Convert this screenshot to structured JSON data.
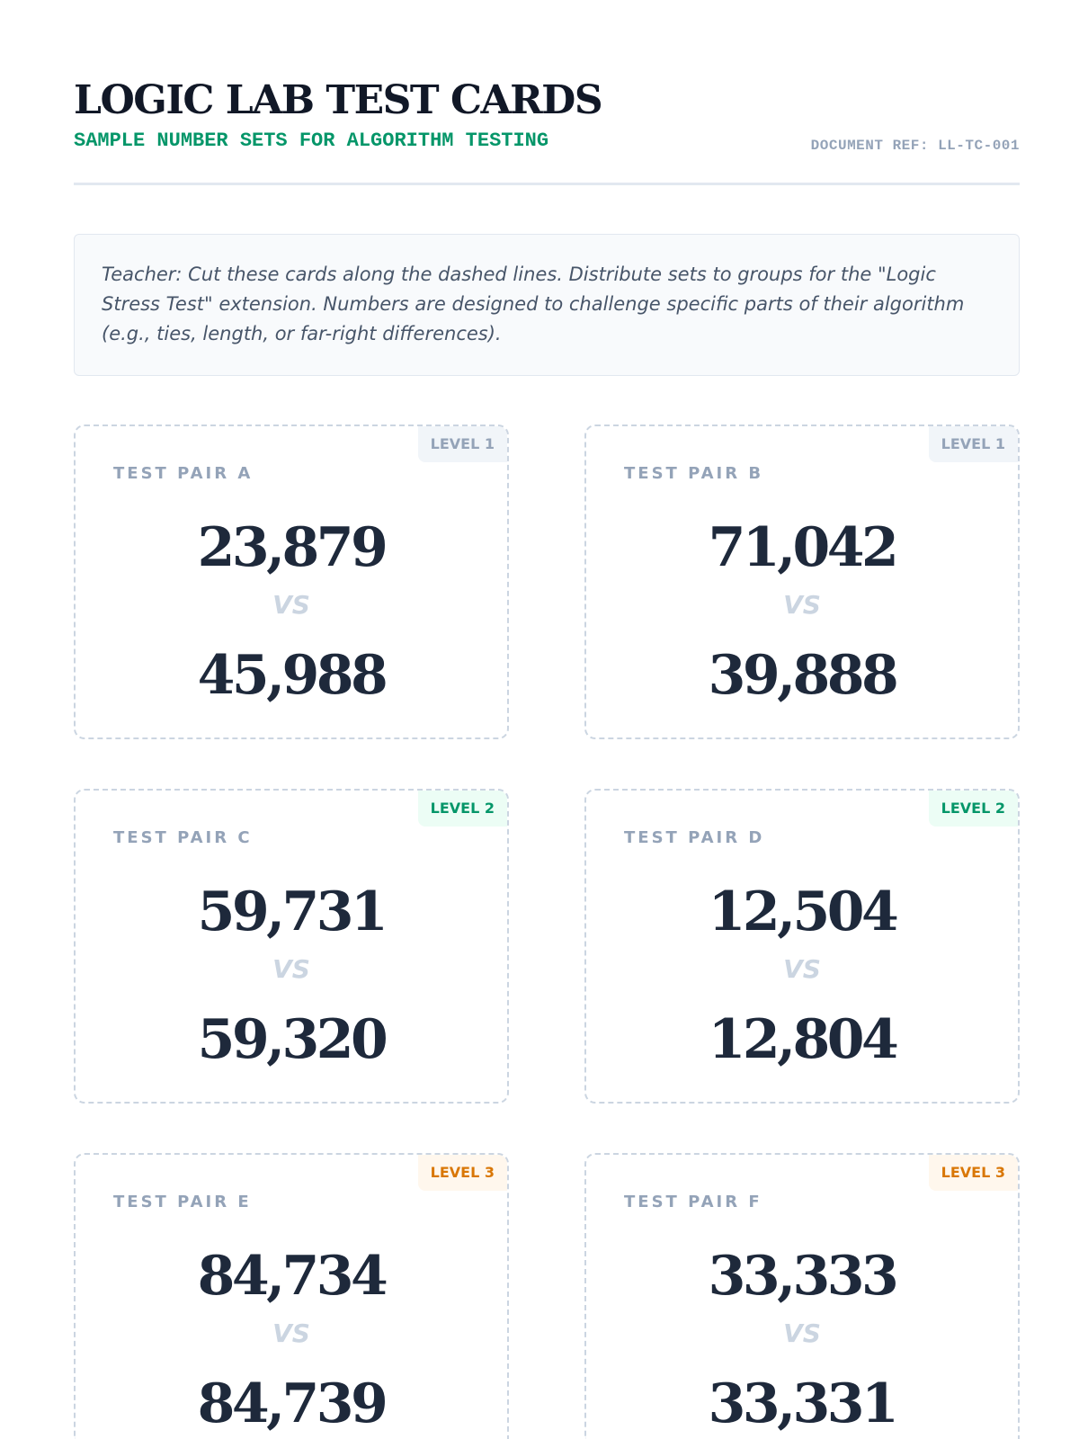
{
  "header": {
    "title": "LOGIC LAB TEST CARDS",
    "subtitle": "SAMPLE NUMBER SETS FOR ALGORITHM TESTING",
    "doc_ref": "DOCUMENT REF: LL-TC-001"
  },
  "note": "Teacher: Cut these cards along the dashed lines. Distribute sets to groups for the \"Logic Stress Test\" extension. Numbers are designed to challenge specific parts of their algorithm (e.g., ties, length, or far-right differences).",
  "cards": [
    {
      "label": "TEST PAIR A",
      "level": "LEVEL 1",
      "level_color": "#94a3b8",
      "top": "23,879",
      "vs": "VS",
      "bottom": "45,988"
    },
    {
      "label": "TEST PAIR B",
      "level": "LEVEL 1",
      "level_color": "#94a3b8",
      "top": "71,042",
      "vs": "VS",
      "bottom": "39,888"
    },
    {
      "label": "TEST PAIR C",
      "level": "LEVEL 2",
      "level_color": "#059669",
      "top": "59,731",
      "vs": "VS",
      "bottom": "59,320"
    },
    {
      "label": "TEST PAIR D",
      "level": "LEVEL 2",
      "level_color": "#059669",
      "top": "12,504",
      "vs": "VS",
      "bottom": "12,804"
    },
    {
      "label": "TEST PAIR E",
      "level": "LEVEL 3",
      "level_color": "#d97706",
      "top": "84,734",
      "vs": "VS",
      "bottom": "84,739"
    },
    {
      "label": "TEST PAIR F",
      "level": "LEVEL 3",
      "level_color": "#d97706",
      "top": "33,333",
      "vs": "VS",
      "bottom": "33,331"
    }
  ]
}
